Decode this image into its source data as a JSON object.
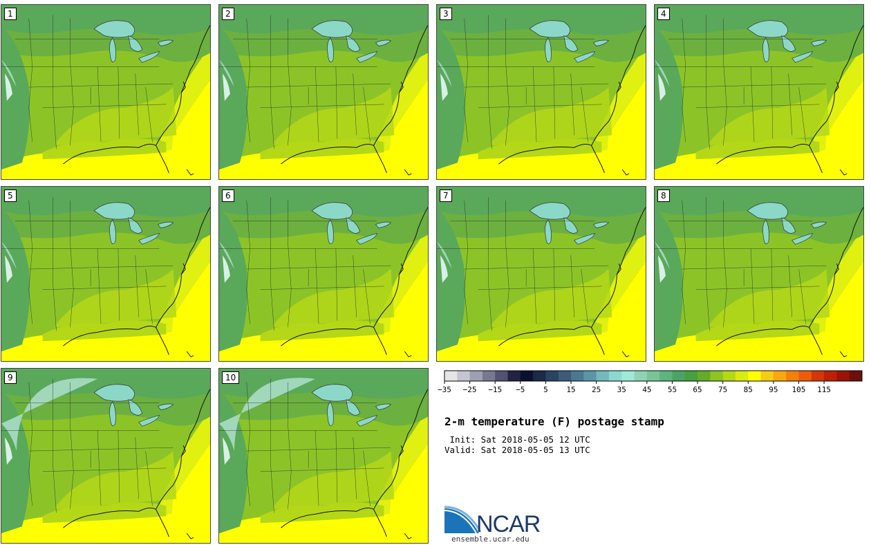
{
  "panels": [
    {
      "label": "1"
    },
    {
      "label": "2"
    },
    {
      "label": "3"
    },
    {
      "label": "4"
    },
    {
      "label": "5"
    },
    {
      "label": "6"
    },
    {
      "label": "7"
    },
    {
      "label": "8"
    },
    {
      "label": "9"
    },
    {
      "label": "10"
    }
  ],
  "colorbar": {
    "tick_labels": [
      "-35",
      "-25",
      "-15",
      "-5",
      "5",
      "15",
      "25",
      "35",
      "45",
      "55",
      "65",
      "75",
      "85",
      "95",
      "105",
      "115"
    ],
    "colors": [
      "#e6e6e6",
      "#c4c4d4",
      "#9e9eb4",
      "#787890",
      "#525272",
      "#222244",
      "#0a1030",
      "#1a2a48",
      "#2a4460",
      "#3a5c78",
      "#4a7890",
      "#5c96a6",
      "#74b8bc",
      "#8cd8d0",
      "#a0e8d8",
      "#8ed4b4",
      "#78c498",
      "#5eb47e",
      "#4aa464",
      "#46a03c",
      "#64ac28",
      "#8cc420",
      "#b4d818",
      "#d8ec10",
      "#ffff00",
      "#f8cc14",
      "#f8a810",
      "#f4800c",
      "#ec5c0c",
      "#d43808",
      "#bc2008",
      "#9c1408",
      "#6c1008"
    ]
  },
  "title": "2-m temperature (F) postage stamp",
  "init": " Init: Sat 2018-05-05 12 UTC",
  "valid": "Valid: Sat 2018-05-05 13 UTC",
  "logo": {
    "name": "NCAR",
    "url": "ensemble.ucar.edu"
  },
  "map_colors": {
    "cold": "#5aa85a",
    "cool": "#6cb040",
    "mild": "#8cc428",
    "warm": "#b4d818",
    "hot": "#e0f010",
    "vhot": "#ffff00",
    "mountain": "#a8dcc4",
    "lake": "#8cd8c8"
  }
}
